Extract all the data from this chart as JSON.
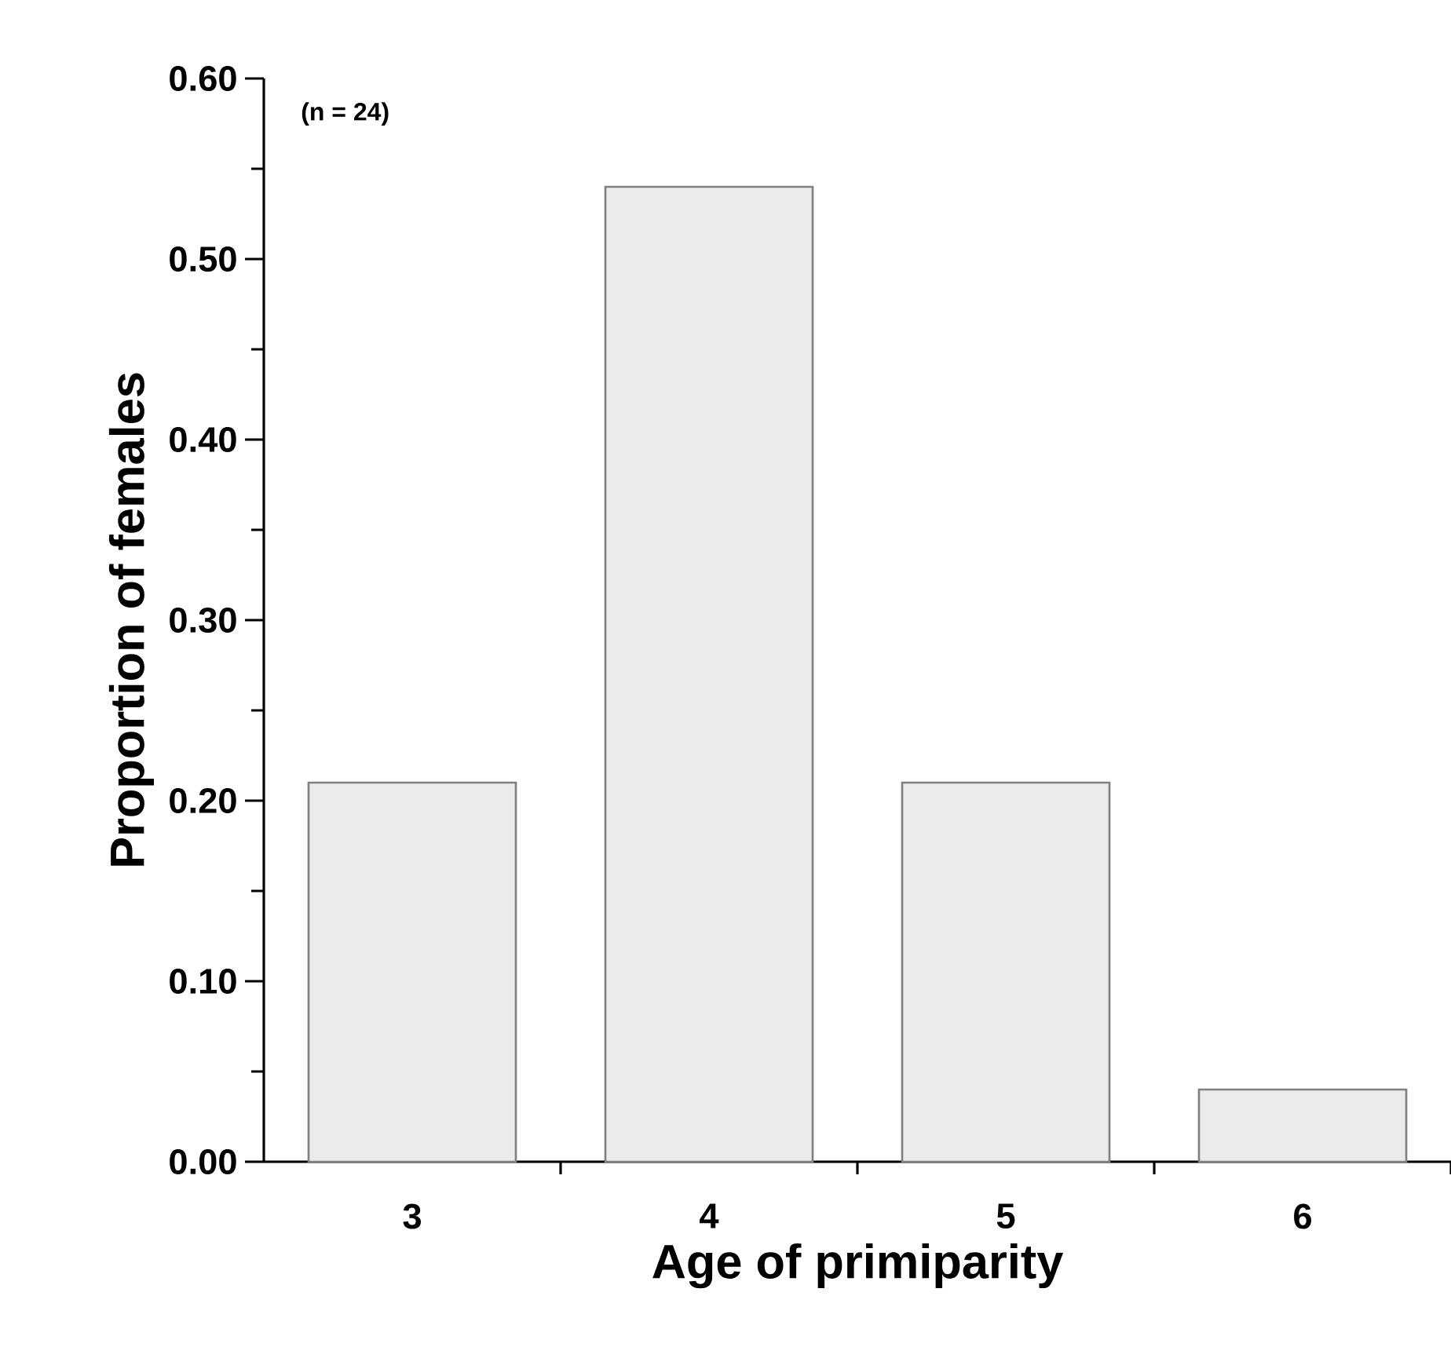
{
  "chart_data": {
    "type": "bar",
    "xlabel": "Age of primiparity",
    "ylabel": "Proportion of females",
    "categories": [
      "3",
      "4",
      "5",
      "6"
    ],
    "values": [
      0.21,
      0.54,
      0.21,
      0.04
    ],
    "color": "#ebebeb",
    "ylim": [
      0,
      0.6
    ],
    "yticks": [
      {
        "value": 0,
        "label": "0.00"
      },
      {
        "value": 0.1,
        "label": "0.10"
      },
      {
        "value": 0.2,
        "label": "0.20"
      },
      {
        "value": 0.3,
        "label": "0.30"
      },
      {
        "value": 0.4,
        "label": "0.40"
      },
      {
        "value": 0.5,
        "label": "0.50"
      },
      {
        "value": 0.6,
        "label": "0.60"
      }
    ],
    "annotations": [
      "(n = 24)"
    ]
  }
}
